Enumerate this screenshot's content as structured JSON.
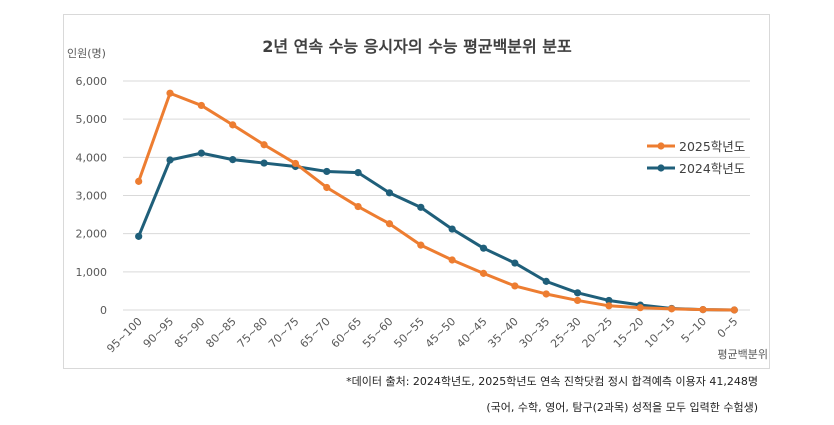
{
  "chart_data": {
    "type": "line",
    "title": "2년 연속 수능 응시자의 수능 평균백분위 분포",
    "ylabel": "인원(명)",
    "xlabel": "평균백분위",
    "ylim": [
      0,
      6000
    ],
    "yticks": [
      "0",
      "1,000",
      "2,000",
      "3,000",
      "4,000",
      "5,000",
      "6,000"
    ],
    "ytick_values": [
      0,
      1000,
      2000,
      3000,
      4000,
      5000,
      6000
    ],
    "categories": [
      "95~100",
      "90~95",
      "85~90",
      "80~85",
      "75~80",
      "70~75",
      "65~70",
      "60~65",
      "55~60",
      "50~55",
      "45~50",
      "40~45",
      "35~40",
      "30~35",
      "25~30",
      "20~25",
      "15~20",
      "10~15",
      "5~10",
      "0~5"
    ],
    "series": [
      {
        "name": "2025학년도",
        "color": "#ed7d31",
        "values": [
          3370,
          5680,
          5360,
          4850,
          4330,
          3840,
          3210,
          2710,
          2260,
          1700,
          1310,
          960,
          630,
          420,
          250,
          110,
          60,
          30,
          10,
          0
        ]
      },
      {
        "name": "2024학년도",
        "color": "#1f5f7a",
        "values": [
          1930,
          3930,
          4110,
          3940,
          3850,
          3760,
          3630,
          3600,
          3070,
          2690,
          2120,
          1620,
          1230,
          750,
          450,
          250,
          130,
          40,
          10,
          0
        ]
      }
    ],
    "grid": true,
    "legend_position": "right"
  },
  "notes": {
    "source": "*데이터 출처: 2024학년도, 2025학년도 연속 진학닷컴 정시 합격예측 이용자 41,248명",
    "criteria": "(국어, 수학, 영어, 탐구(2과목) 성적을 모두 입력한 수험생)"
  }
}
